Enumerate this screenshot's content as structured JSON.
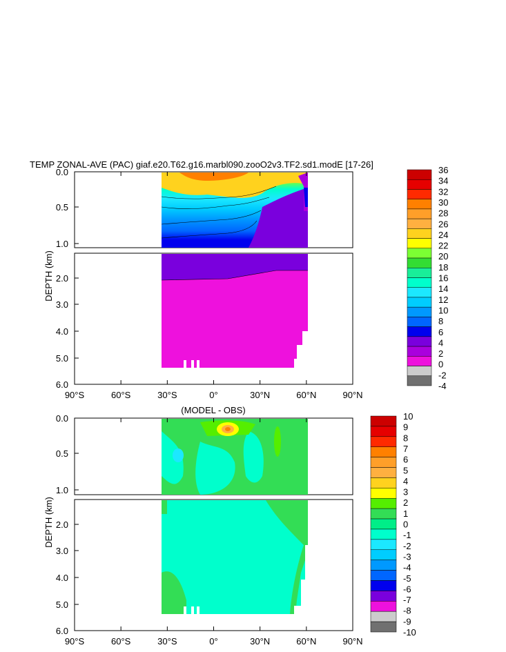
{
  "chart_data": [
    {
      "type": "heatmap",
      "title": "TEMP ZONAL-AVE (PAC) giaf.e20.T62.g16.marbl090.zooO2v3.TF2.sd1.modE [17-26]",
      "ylabel": "DEPTH (km)",
      "x_ticks": [
        "90°S",
        "60°S",
        "30°S",
        "0°",
        "30°N",
        "60°N",
        "90°N"
      ],
      "xlim": [
        -90,
        90
      ],
      "upper_depth_ticks": [
        "0.0",
        "0.5",
        "1.0"
      ],
      "lower_depth_ticks": [
        "2.0",
        "3.0",
        "4.0",
        "5.0",
        "6.0"
      ],
      "ylim": [
        0,
        6
      ],
      "data_extent_lat": [
        -33,
        61
      ],
      "colorbar_labels": [
        "36",
        "34",
        "32",
        "30",
        "28",
        "26",
        "24",
        "22",
        "20",
        "18",
        "16",
        "14",
        "12",
        "10",
        "8",
        "6",
        "4",
        "2",
        "0",
        "-2",
        "-4"
      ],
      "colors": [
        "#cc0000",
        "#e60000",
        "#ff2a00",
        "#ff8000",
        "#ff9f29",
        "#ffb040",
        "#ffd21e",
        "#ffff00",
        "#7cff33",
        "#33dd33",
        "#19ee99",
        "#00ffcc",
        "#1ce8ff",
        "#00cdff",
        "#0099ff",
        "#0066ff",
        "#0000ee",
        "#7a00dd",
        "#aa00dd",
        "#ee11dd",
        "#cccccc",
        "#707070"
      ]
    },
    {
      "type": "heatmap",
      "title": "(MODEL - OBS)",
      "ylabel": "DEPTH (km)",
      "x_ticks": [
        "90°S",
        "60°S",
        "30°S",
        "0°",
        "30°N",
        "60°N",
        "90°N"
      ],
      "xlim": [
        -90,
        90
      ],
      "upper_depth_ticks": [
        "0.0",
        "0.5",
        "1.0"
      ],
      "lower_depth_ticks": [
        "2.0",
        "3.0",
        "4.0",
        "5.0",
        "6.0"
      ],
      "ylim": [
        0,
        6
      ],
      "data_extent_lat": [
        -33,
        61
      ],
      "colorbar_labels": [
        "10",
        "9",
        "8",
        "7",
        "6",
        "5",
        "4",
        "3",
        "2",
        "1",
        "0",
        "-1",
        "-2",
        "-3",
        "-4",
        "-5",
        "-6",
        "-7",
        "-8",
        "-9",
        "-10"
      ],
      "colors": [
        "#cc0000",
        "#e60000",
        "#ff2a00",
        "#ff8000",
        "#ff9f29",
        "#ffb040",
        "#ffd21e",
        "#ffff00",
        "#55ee00",
        "#33dd55",
        "#00ee88",
        "#00ffcc",
        "#1ce8ff",
        "#00cdff",
        "#0099ff",
        "#0066ff",
        "#0000ee",
        "#7a00dd",
        "#ee11dd",
        "#cccccc",
        "#707070"
      ]
    }
  ]
}
